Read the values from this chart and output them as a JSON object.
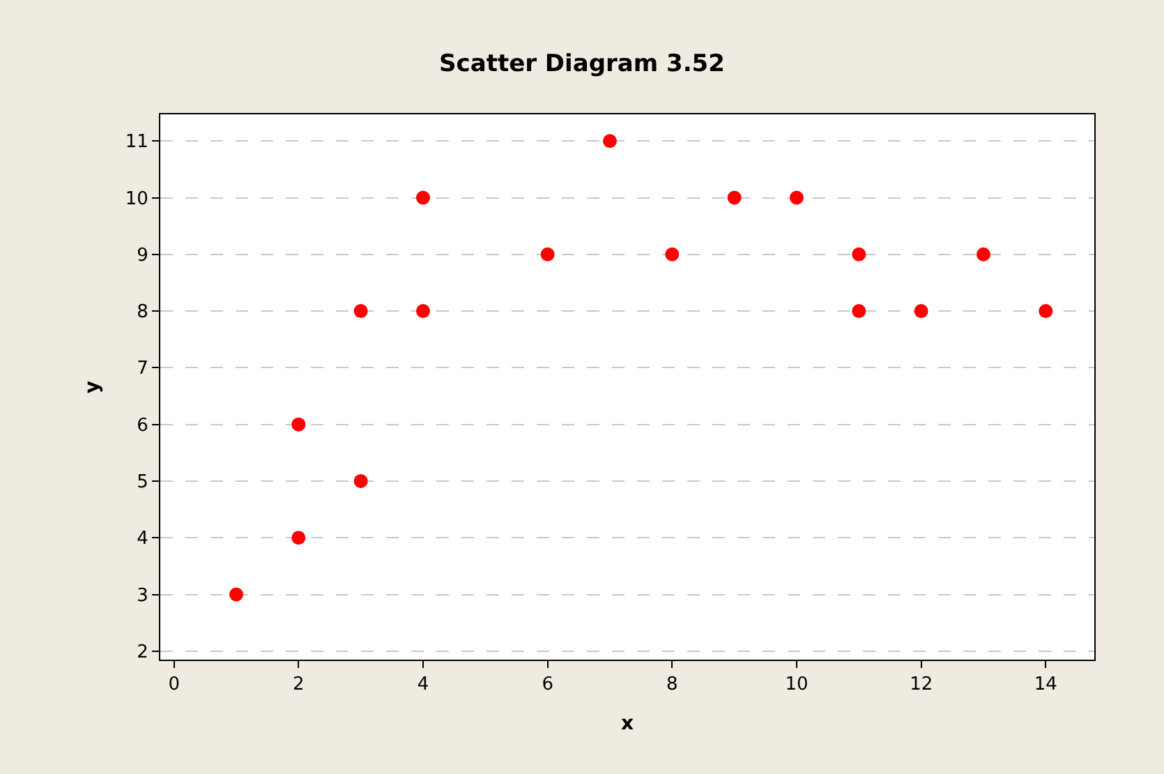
{
  "chart_data": {
    "type": "scatter",
    "title": "Scatter Diagram 3.52",
    "xlabel": "x",
    "ylabel": "y",
    "x": [
      1,
      2,
      2,
      3,
      3,
      4,
      4,
      6,
      7,
      8,
      9,
      10,
      11,
      11,
      12,
      13,
      14
    ],
    "series": [
      {
        "color": "#ff0000",
        "values": [
          3,
          4,
          6,
          5,
          8,
          8,
          10,
          9,
          11,
          9,
          10,
          10,
          9,
          8,
          8,
          9,
          8
        ]
      }
    ],
    "xlim": [
      -0.22,
      14.78
    ],
    "ylim": [
      1.85,
      11.47
    ],
    "xticks": [
      0,
      2,
      4,
      6,
      8,
      10,
      12,
      14
    ],
    "yticks": [
      2,
      3,
      4,
      5,
      6,
      7,
      8,
      9,
      10,
      11
    ],
    "grid": "y",
    "marker": "circle",
    "legend": false
  }
}
